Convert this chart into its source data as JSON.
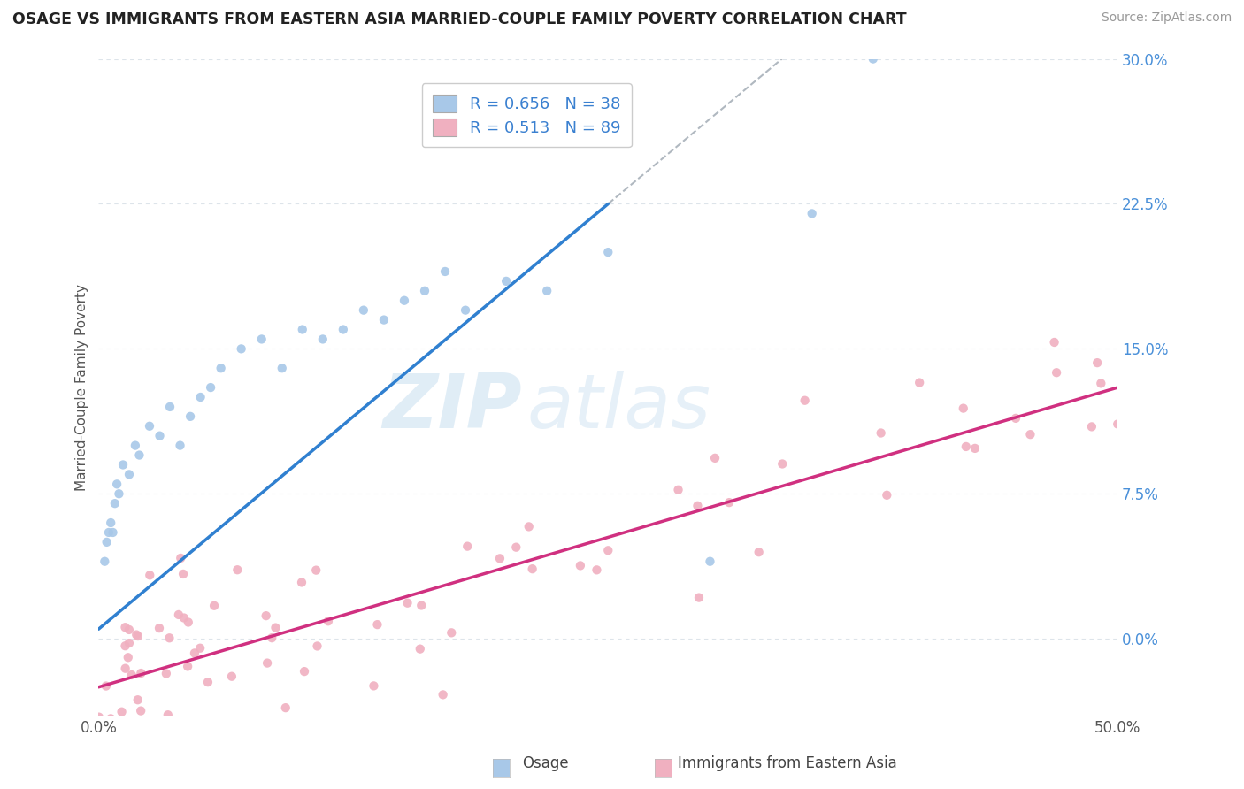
{
  "title": "OSAGE VS IMMIGRANTS FROM EASTERN ASIA MARRIED-COUPLE FAMILY POVERTY CORRELATION CHART",
  "source": "Source: ZipAtlas.com",
  "ylabel": "Married-Couple Family Poverty",
  "legend_label1": "Osage",
  "legend_label2": "Immigrants from Eastern Asia",
  "r1": 0.656,
  "n1": 38,
  "r2": 0.513,
  "n2": 89,
  "blue_color": "#a8c8e8",
  "pink_color": "#f0b0c0",
  "blue_line_color": "#3080d0",
  "pink_line_color": "#d03080",
  "gray_dashed_color": "#b0b8c0",
  "xmin": 0.0,
  "xmax": 50.0,
  "ymin": -4.0,
  "ymax": 30.0,
  "yticks": [
    0.0,
    7.5,
    15.0,
    22.5,
    30.0
  ],
  "background_color": "#ffffff",
  "grid_color": "#dde4ea",
  "watermark_zip": "ZIP",
  "watermark_atlas": "atlas",
  "blue_line_x0": 0.0,
  "blue_line_y0": 0.5,
  "blue_line_x1": 25.0,
  "blue_line_y1": 22.5,
  "pink_line_x0": 0.0,
  "pink_line_y0": -2.5,
  "pink_line_x1": 50.0,
  "pink_line_y1": 13.0,
  "gray_x0": 15.0,
  "gray_y0": 0.0,
  "gray_x1": 50.0,
  "gray_y1": 30.0
}
